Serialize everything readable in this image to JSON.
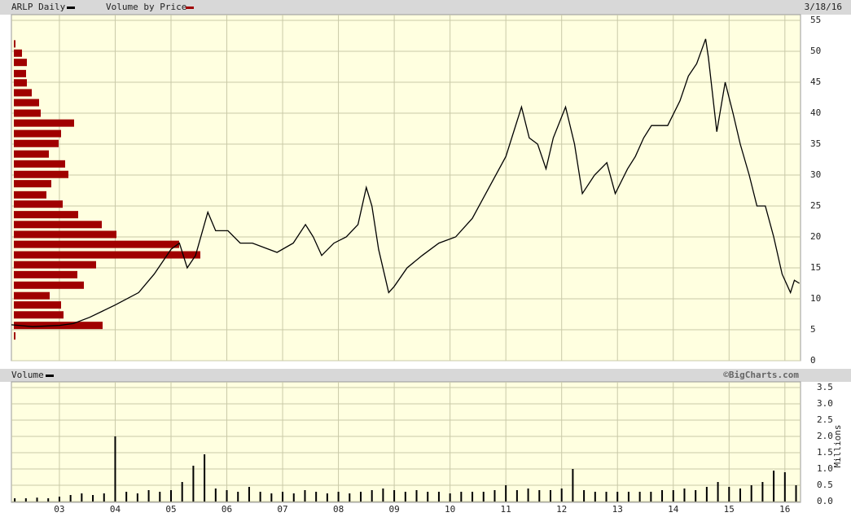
{
  "chart_data": [
    {
      "type": "line",
      "date_label": "3/18/16",
      "x": [
        2002.14,
        2002.52,
        2003.0,
        2003.25,
        2003.54,
        2004.0,
        2004.42,
        2004.7,
        2005.0,
        2005.15,
        2005.29,
        2005.44,
        2005.66,
        2005.8,
        2006.02,
        2006.24,
        2006.46,
        2006.9,
        2007.19,
        2007.41,
        2007.55,
        2007.7,
        2007.92,
        2008.14,
        2008.35,
        2008.5,
        2008.6,
        2008.72,
        2008.9,
        2009.0,
        2009.23,
        2009.5,
        2009.8,
        2010.1,
        2010.4,
        2010.7,
        2011.0,
        2011.28,
        2011.42,
        2011.57,
        2011.72,
        2011.85,
        2012.07,
        2012.23,
        2012.37,
        2012.59,
        2012.81,
        2012.96,
        2013.18,
        2013.32,
        2013.47,
        2013.61,
        2013.9,
        2014.12,
        2014.27,
        2014.42,
        2014.58,
        2014.63,
        2014.78,
        2014.93,
        2015.07,
        2015.2,
        2015.36,
        2015.5,
        2015.65,
        2015.8,
        2015.95,
        2016.1,
        2016.17,
        2016.26
      ],
      "xlim": [
        2002.14,
        2016.28
      ],
      "ylim": [
        0,
        55
      ],
      "yticks": [
        0,
        5,
        10,
        15,
        20,
        25,
        30,
        35,
        40,
        45,
        50,
        55
      ],
      "grid": true,
      "series": [
        {
          "name": "ARLP Daily",
          "color": "#000000",
          "values": [
            5.8,
            5.5,
            5.7,
            6,
            7,
            9,
            11,
            14,
            18,
            19,
            15,
            17,
            24,
            21,
            21,
            19,
            19,
            17.5,
            19,
            22,
            20,
            17,
            19,
            20,
            22,
            28,
            25,
            18,
            11,
            12,
            15,
            17,
            19,
            20,
            23,
            28,
            33,
            41,
            36,
            35,
            31,
            36,
            41,
            35,
            27,
            30,
            32,
            27,
            31,
            33,
            36,
            38,
            38,
            42,
            46,
            48,
            52,
            49,
            37,
            45,
            40,
            35,
            30,
            25,
            25,
            20,
            14,
            11,
            13,
            12.5
          ]
        }
      ],
      "volume_by_price": {
        "name": "Volume by Price",
        "color": "#a00000",
        "prices": [
          4.0,
          5.7,
          7.4,
          9.0,
          10.5,
          12.2,
          13.9,
          15.5,
          17.1,
          18.8,
          20.4,
          22.0,
          23.6,
          25.3,
          26.8,
          28.6,
          30.1,
          31.8,
          33.4,
          35.1,
          36.7,
          38.4,
          40.0,
          41.7,
          43.3,
          44.9,
          46.4,
          48.2,
          49.7,
          51.2
        ],
        "values": [
          2,
          109,
          61,
          58,
          44,
          86,
          78,
          101,
          229,
          203,
          126,
          108,
          79,
          60,
          40,
          46,
          67,
          63,
          43,
          55,
          58,
          74,
          33,
          31,
          22,
          16,
          15,
          16,
          10,
          2
        ]
      }
    },
    {
      "type": "bar",
      "credit": "©BigCharts.com",
      "y_axis_label": "Millions",
      "x": [
        2002.2,
        2002.4,
        2002.6,
        2002.8,
        2003.0,
        2003.2,
        2003.4,
        2003.6,
        2003.8,
        2004.0,
        2004.2,
        2004.4,
        2004.6,
        2004.8,
        2005.0,
        2005.2,
        2005.4,
        2005.6,
        2005.8,
        2006.0,
        2006.2,
        2006.4,
        2006.6,
        2006.8,
        2007.0,
        2007.2,
        2007.4,
        2007.6,
        2007.8,
        2008.0,
        2008.2,
        2008.4,
        2008.6,
        2008.8,
        2009.0,
        2009.2,
        2009.4,
        2009.6,
        2009.8,
        2010.0,
        2010.2,
        2010.4,
        2010.6,
        2010.8,
        2011.0,
        2011.2,
        2011.4,
        2011.6,
        2011.8,
        2012.0,
        2012.2,
        2012.4,
        2012.6,
        2012.8,
        2013.0,
        2013.2,
        2013.4,
        2013.6,
        2013.8,
        2014.0,
        2014.2,
        2014.4,
        2014.6,
        2014.8,
        2015.0,
        2015.2,
        2015.4,
        2015.6,
        2015.8,
        2016.0,
        2016.2
      ],
      "xlim": [
        2002.14,
        2016.28
      ],
      "xticks": [
        {
          "value": 2003,
          "label": "03"
        },
        {
          "value": 2004,
          "label": "04"
        },
        {
          "value": 2005,
          "label": "05"
        },
        {
          "value": 2006,
          "label": "06"
        },
        {
          "value": 2007,
          "label": "07"
        },
        {
          "value": 2008,
          "label": "08"
        },
        {
          "value": 2009,
          "label": "09"
        },
        {
          "value": 2010,
          "label": "10"
        },
        {
          "value": 2011,
          "label": "11"
        },
        {
          "value": 2012,
          "label": "12"
        },
        {
          "value": 2013,
          "label": "13"
        },
        {
          "value": 2014,
          "label": "14"
        },
        {
          "value": 2015,
          "label": "15"
        },
        {
          "value": 2016,
          "label": "16"
        }
      ],
      "ylim": [
        0,
        3.5
      ],
      "yticks": [
        {
          "value": 0,
          "label": "0.0"
        },
        {
          "value": 0.5,
          "label": "0.5"
        },
        {
          "value": 1,
          "label": "1.0"
        },
        {
          "value": 1.5,
          "label": "1.5"
        },
        {
          "value": 2,
          "label": "2.0"
        },
        {
          "value": 2.5,
          "label": "2.5"
        },
        {
          "value": 3,
          "label": "3.0"
        },
        {
          "value": 3.5,
          "label": "3.5"
        }
      ],
      "grid": true,
      "series": [
        {
          "name": "Volume",
          "color": "#000000",
          "values": [
            0.1,
            0.1,
            0.12,
            0.1,
            0.15,
            0.2,
            0.25,
            0.2,
            0.25,
            2.0,
            0.3,
            0.25,
            0.35,
            0.3,
            0.35,
            0.6,
            1.1,
            1.45,
            0.4,
            0.35,
            0.3,
            0.45,
            0.3,
            0.25,
            0.3,
            0.25,
            0.35,
            0.3,
            0.25,
            0.3,
            0.25,
            0.3,
            0.35,
            0.4,
            0.35,
            0.3,
            0.35,
            0.3,
            0.3,
            0.25,
            0.3,
            0.3,
            0.3,
            0.35,
            0.5,
            0.35,
            0.4,
            0.35,
            0.35,
            0.4,
            1.0,
            0.35,
            0.3,
            0.3,
            0.3,
            0.3,
            0.3,
            0.3,
            0.35,
            0.35,
            0.4,
            0.35,
            0.45,
            0.6,
            0.45,
            0.4,
            0.5,
            0.6,
            0.95,
            0.9,
            0.5
          ]
        }
      ]
    }
  ]
}
